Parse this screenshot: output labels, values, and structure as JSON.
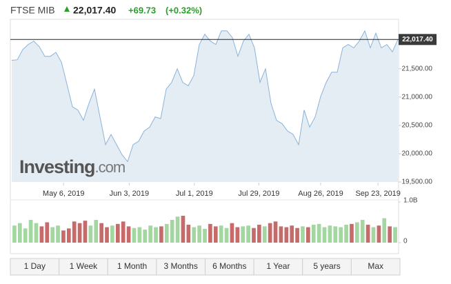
{
  "header": {
    "name": "FTSE MIB",
    "price": "22,017.40",
    "change": "+69.73",
    "change_pct": "(+0.32%)"
  },
  "watermark": {
    "brand": "Investing",
    "suffix": ".com"
  },
  "chart_data": [
    {
      "type": "line",
      "color": "#8ab2d9",
      "fill": "#e5edf4",
      "values": [
        21650,
        21660,
        21840,
        21930,
        21990,
        21890,
        21720,
        21720,
        21790,
        21620,
        21230,
        20830,
        20770,
        20590,
        20890,
        21140,
        20650,
        20160,
        20340,
        20160,
        19980,
        19860,
        20160,
        20220,
        20400,
        20470,
        20650,
        20620,
        21140,
        21260,
        21500,
        21260,
        21200,
        21380,
        21930,
        22110,
        21990,
        21930,
        22170,
        22170,
        22050,
        21720,
        21990,
        22110,
        21870,
        21260,
        21500,
        20890,
        20590,
        20530,
        20400,
        20340,
        20160,
        20770,
        20470,
        20650,
        21010,
        21260,
        21440,
        21440,
        21870,
        21930,
        21870,
        21990,
        22170,
        21870,
        22130,
        21870,
        21930,
        21800,
        22017.4
      ],
      "xlim": [
        0,
        70
      ],
      "xticks": [
        {
          "value": 9.4,
          "label": "May 6, 2019"
        },
        {
          "value": 21.3,
          "label": "Jun 3, 2019"
        },
        {
          "value": 33.1,
          "label": "Jul 1, 2019"
        },
        {
          "value": 44.8,
          "label": "Jul 29, 2019"
        },
        {
          "value": 56,
          "label": "Aug 26, 2019"
        },
        {
          "value": 66.4,
          "label": "Sep 23, 2019"
        }
      ],
      "ylim": [
        19500,
        22350
      ],
      "yticks": [
        {
          "value": 19500,
          "label": "19,500.00"
        },
        {
          "value": 20000,
          "label": "20,000.00"
        },
        {
          "value": 20500,
          "label": "20,500.00"
        },
        {
          "value": 21000,
          "label": "21,000.00"
        },
        {
          "value": 21500,
          "label": "21,500.00"
        }
      ],
      "last_price": {
        "value": 22017.4,
        "label": "22,017.40"
      }
    },
    {
      "type": "bar",
      "up_color": "#a3d6a0",
      "down_color": "#c66a6a",
      "values": [
        420000000,
        480000000,
        350000000,
        560000000,
        480000000,
        400000000,
        500000000,
        380000000,
        420000000,
        300000000,
        350000000,
        520000000,
        480000000,
        540000000,
        420000000,
        560000000,
        480000000,
        380000000,
        420000000,
        460000000,
        520000000,
        400000000,
        360000000,
        380000000,
        320000000,
        420000000,
        380000000,
        400000000,
        460000000,
        560000000,
        640000000,
        660000000,
        440000000,
        380000000,
        420000000,
        340000000,
        460000000,
        400000000,
        420000000,
        360000000,
        480000000,
        380000000,
        400000000,
        420000000,
        360000000,
        440000000,
        400000000,
        480000000,
        520000000,
        400000000,
        380000000,
        420000000,
        360000000,
        400000000,
        380000000,
        440000000,
        460000000,
        380000000,
        420000000,
        400000000,
        380000000,
        440000000,
        460000000,
        500000000,
        560000000,
        440000000,
        380000000,
        420000000,
        600000000,
        400000000,
        380000000
      ],
      "ylim": [
        0,
        1000000000
      ],
      "yticks": [
        {
          "value": 1000000000,
          "label": "1.0B"
        },
        0
      ]
    }
  ],
  "buttons": [
    "1 Day",
    "1 Week",
    "1 Month",
    "3 Months",
    "6 Months",
    "1 Year",
    "5 years",
    "Max"
  ]
}
